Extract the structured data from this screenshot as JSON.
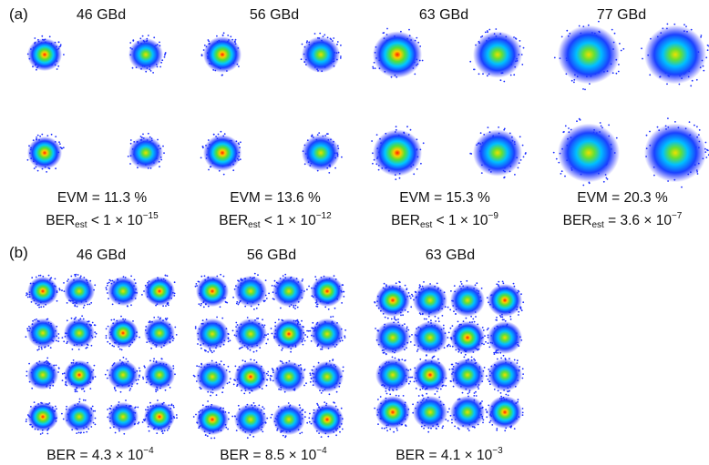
{
  "panel_a": {
    "label": "(a)",
    "rates": [
      "46 GBd",
      "56 GBd",
      "63 GBd",
      "77 GBd"
    ],
    "evm": [
      {
        "evm": "EVM = 11.3 %",
        "ber_prefix": "BER",
        "ber_sub": "est",
        "ber_mid": " < 1 × 10",
        "ber_exp": "−15"
      },
      {
        "evm": "EVM = 13.6 %",
        "ber_prefix": "BER",
        "ber_sub": "est",
        "ber_mid": " < 1 × 10",
        "ber_exp": "−12"
      },
      {
        "evm": "EVM = 15.3 %",
        "ber_prefix": "BER",
        "ber_sub": "est",
        "ber_mid": " < 1 × 10",
        "ber_exp": "−9"
      },
      {
        "evm": "EVM = 20.3 %",
        "ber_prefix": "BER",
        "ber_sub": "est",
        "ber_mid": " = 3.6 × 10",
        "ber_exp": "−7"
      }
    ]
  },
  "panel_b": {
    "label": "(b)",
    "rates": [
      "46 GBd",
      "56 GBd",
      "63 GBd"
    ],
    "ber": [
      {
        "mid": "BER = 4.3 × 10",
        "exp": "−4"
      },
      {
        "mid": "BER = 8.5 × 10",
        "exp": "−4"
      },
      {
        "mid": "BER = 4.1 × 10",
        "exp": "−3"
      }
    ]
  },
  "colors": {
    "outer": "#1a1aff",
    "mid": "#00c8ff",
    "green": "#33dd33",
    "yellow": "#ffee00",
    "core": "#ff2200"
  }
}
